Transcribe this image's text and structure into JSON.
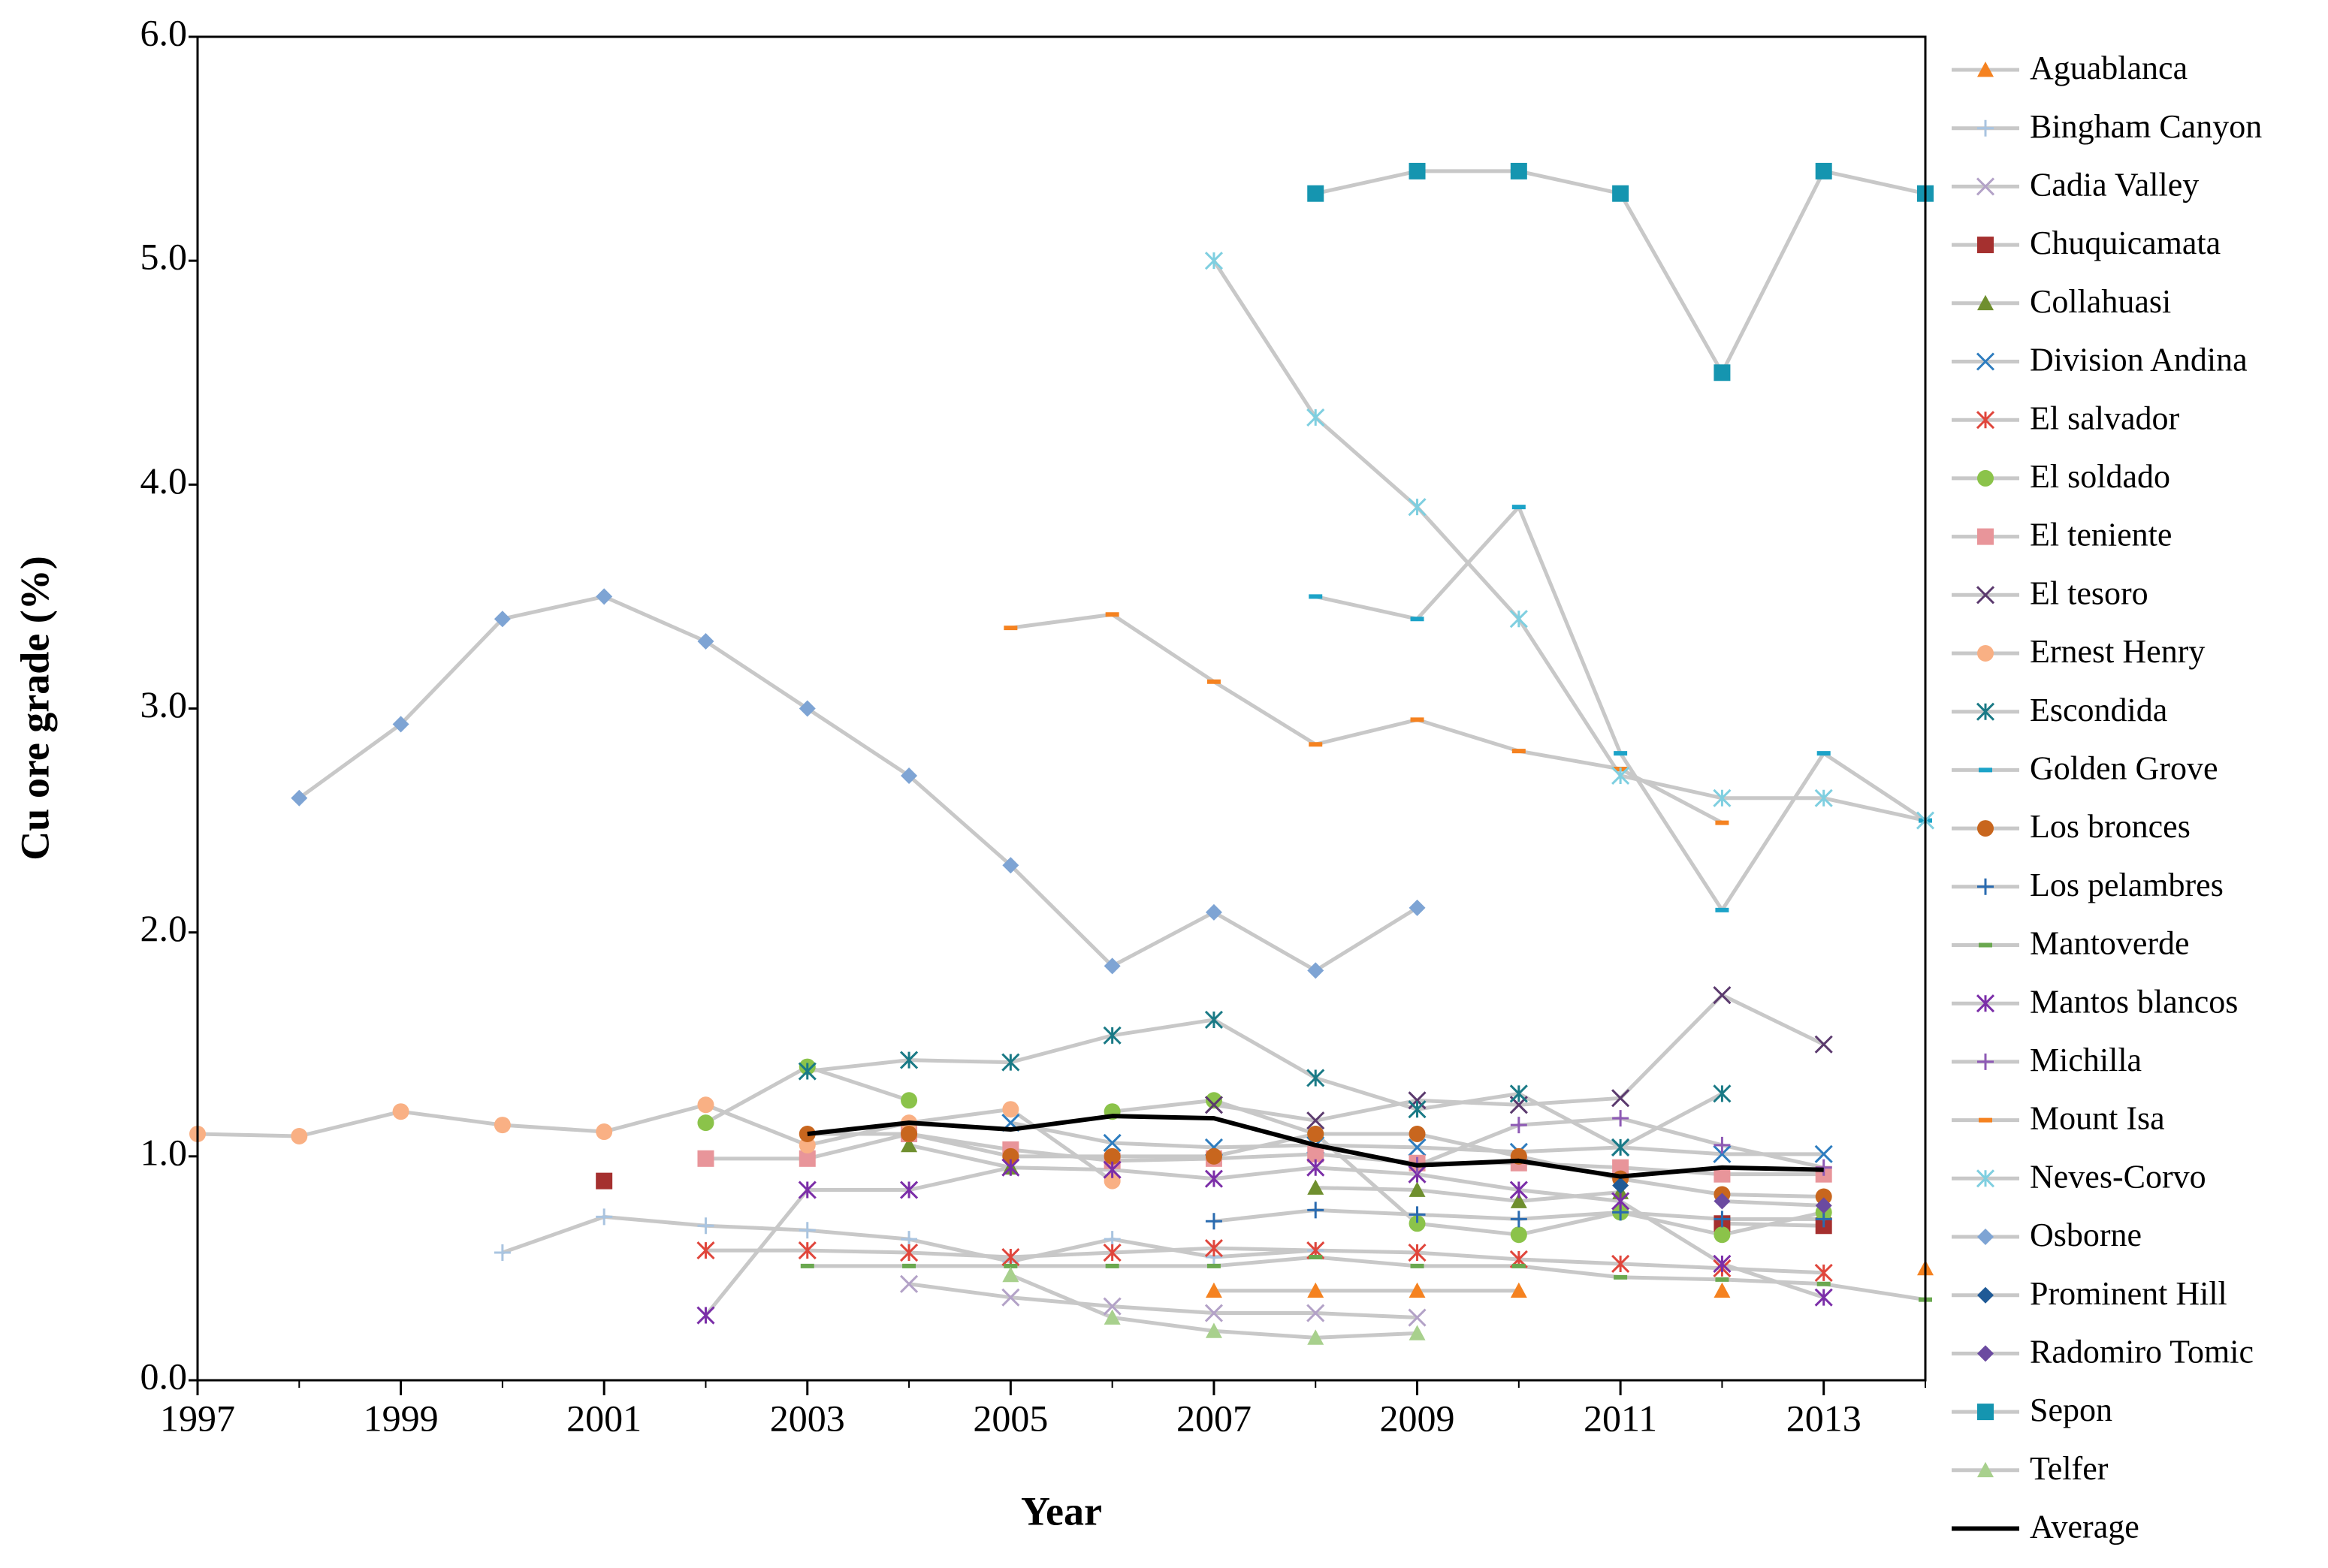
{
  "chart_data": {
    "type": "line",
    "x_label": "Year",
    "y_label": "Cu ore grade (%)",
    "x": [
      1997,
      1998,
      1999,
      2000,
      2001,
      2002,
      2003,
      2004,
      2005,
      2006,
      2007,
      2008,
      2009,
      2010,
      2011,
      2012,
      2013,
      2014
    ],
    "xlim": [
      1997,
      2014
    ],
    "xticks": [
      1997,
      1999,
      2001,
      2003,
      2005,
      2007,
      2009,
      2011,
      2013
    ],
    "ylim": [
      0,
      6
    ],
    "yticks": [
      {
        "value": 0,
        "label": "0.0"
      },
      {
        "value": 1,
        "label": "1.0"
      },
      {
        "value": 2,
        "label": "2.0"
      },
      {
        "value": 3,
        "label": "3.0"
      },
      {
        "value": 4,
        "label": "4.0"
      },
      {
        "value": 5,
        "label": "5.0"
      },
      {
        "value": 6,
        "label": "6.0"
      }
    ],
    "line_color": "#c8c8c8",
    "legend": "right",
    "series": [
      {
        "name": "Aguablanca",
        "color": "#f58220",
        "marker": "triangle",
        "values": [
          null,
          null,
          null,
          null,
          null,
          null,
          null,
          null,
          null,
          null,
          0.4,
          0.4,
          0.4,
          0.4,
          null,
          0.4,
          null,
          0.5
        ]
      },
      {
        "name": "Bingham Canyon",
        "color": "#a9c4e0",
        "marker": "plus",
        "values": [
          null,
          null,
          null,
          0.57,
          0.73,
          0.69,
          0.67,
          0.63,
          0.53,
          0.63,
          0.55,
          0.58,
          null,
          null,
          null,
          null,
          null,
          null
        ]
      },
      {
        "name": "Cadia Valley",
        "color": "#b3a2c7",
        "marker": "x",
        "values": [
          null,
          null,
          null,
          null,
          null,
          null,
          null,
          0.43,
          0.37,
          0.33,
          0.3,
          0.3,
          0.28,
          null,
          null,
          null,
          null,
          null
        ]
      },
      {
        "name": "Chuquicamata",
        "color": "#a5302f",
        "marker": "square",
        "values": [
          null,
          null,
          null,
          null,
          0.89,
          null,
          null,
          null,
          null,
          null,
          null,
          null,
          null,
          null,
          null,
          0.7,
          0.69,
          null
        ]
      },
      {
        "name": "Collahuasi",
        "color": "#6f8f2f",
        "marker": "triangle",
        "values": [
          null,
          null,
          null,
          null,
          null,
          null,
          null,
          1.05,
          0.95,
          null,
          null,
          0.86,
          0.85,
          0.8,
          0.84,
          null,
          0.75,
          null
        ]
      },
      {
        "name": "Division Andina",
        "color": "#2e7dbf",
        "marker": "x",
        "values": [
          null,
          null,
          null,
          null,
          null,
          null,
          null,
          null,
          1.15,
          1.06,
          1.04,
          1.05,
          1.04,
          1.02,
          1.04,
          1.01,
          1.01,
          null
        ]
      },
      {
        "name": "El salvador",
        "color": "#e0463c",
        "marker": "asterisk",
        "values": [
          null,
          null,
          null,
          null,
          null,
          0.58,
          0.58,
          0.57,
          0.55,
          0.57,
          0.59,
          0.58,
          0.57,
          0.54,
          0.52,
          0.5,
          0.48,
          null
        ]
      },
      {
        "name": "El soldado",
        "color": "#8bc34a",
        "marker": "circle",
        "values": [
          null,
          null,
          null,
          null,
          null,
          1.15,
          1.4,
          1.25,
          null,
          1.2,
          1.25,
          1.1,
          0.7,
          0.65,
          0.75,
          0.65,
          0.75,
          null
        ]
      },
      {
        "name": "El teniente",
        "color": "#e8959a",
        "marker": "square",
        "values": [
          null,
          null,
          null,
          null,
          null,
          0.99,
          0.99,
          1.1,
          1.03,
          0.98,
          0.99,
          1.01,
          0.97,
          0.97,
          0.95,
          0.92,
          0.92,
          null
        ]
      },
      {
        "name": "El tesoro",
        "color": "#5b3a6e",
        "marker": "x",
        "values": [
          null,
          null,
          null,
          null,
          null,
          null,
          null,
          null,
          null,
          null,
          1.23,
          1.16,
          1.25,
          1.23,
          1.26,
          1.72,
          1.5,
          null
        ]
      },
      {
        "name": "Ernest Henry",
        "color": "#f9b084",
        "marker": "circle",
        "values": [
          1.1,
          1.09,
          1.2,
          1.14,
          1.11,
          1.23,
          1.05,
          1.15,
          1.21,
          0.89,
          null,
          null,
          null,
          null,
          null,
          null,
          null,
          null
        ]
      },
      {
        "name": "Escondida",
        "color": "#1a7a86",
        "marker": "asterisk",
        "values": [
          null,
          null,
          null,
          null,
          null,
          null,
          1.38,
          1.43,
          1.42,
          1.54,
          1.61,
          1.35,
          1.21,
          1.28,
          1.04,
          1.28,
          null,
          null
        ]
      },
      {
        "name": "Golden Grove",
        "color": "#1ca3c8",
        "marker": "dash",
        "values": [
          null,
          null,
          null,
          null,
          null,
          null,
          null,
          null,
          null,
          null,
          null,
          3.5,
          3.4,
          3.9,
          2.8,
          2.1,
          2.8,
          2.5
        ]
      },
      {
        "name": "Los bronces",
        "color": "#c8661e",
        "marker": "circle",
        "values": [
          null,
          null,
          null,
          null,
          null,
          null,
          1.1,
          1.1,
          1.0,
          1.0,
          1.0,
          1.1,
          1.1,
          1.0,
          0.9,
          0.83,
          0.82,
          null
        ]
      },
      {
        "name": "Los pelambres",
        "color": "#2a6bb0",
        "marker": "plus",
        "values": [
          null,
          null,
          null,
          null,
          null,
          null,
          null,
          null,
          null,
          null,
          0.71,
          0.76,
          0.74,
          0.72,
          0.75,
          0.72,
          0.72,
          null
        ]
      },
      {
        "name": "Mantoverde",
        "color": "#6aa84f",
        "marker": "dash",
        "values": [
          null,
          null,
          null,
          null,
          null,
          null,
          0.51,
          0.51,
          0.51,
          0.51,
          0.51,
          0.55,
          0.51,
          0.51,
          0.46,
          0.45,
          0.43,
          0.36
        ]
      },
      {
        "name": "Mantos blancos",
        "color": "#7b2ea8",
        "marker": "asterisk",
        "values": [
          null,
          null,
          null,
          null,
          null,
          0.29,
          0.85,
          0.85,
          0.95,
          0.94,
          0.9,
          0.95,
          0.92,
          0.85,
          0.8,
          0.52,
          0.37,
          null
        ]
      },
      {
        "name": "Michilla",
        "color": "#8e5ab5",
        "marker": "plus",
        "values": [
          null,
          null,
          null,
          null,
          null,
          null,
          null,
          null,
          null,
          null,
          null,
          null,
          0.96,
          1.14,
          1.17,
          1.05,
          0.95,
          null
        ]
      },
      {
        "name": "Mount Isa",
        "color": "#f58220",
        "marker": "dash",
        "values": [
          null,
          null,
          null,
          null,
          null,
          null,
          null,
          null,
          3.36,
          3.42,
          3.12,
          2.84,
          2.95,
          2.81,
          2.73,
          2.49,
          null,
          null
        ]
      },
      {
        "name": "Neves-Corvo",
        "color": "#7fcfe0",
        "marker": "asterisk",
        "values": [
          null,
          null,
          null,
          null,
          null,
          null,
          null,
          null,
          null,
          null,
          5.0,
          4.3,
          3.9,
          3.4,
          2.7,
          2.6,
          2.6,
          2.5
        ]
      },
      {
        "name": "Osborne",
        "color": "#7ea4d4",
        "marker": "diamond",
        "values": [
          null,
          2.6,
          2.93,
          3.4,
          3.5,
          3.3,
          3.0,
          2.7,
          2.3,
          1.85,
          2.09,
          1.83,
          2.11,
          null,
          null,
          null,
          null,
          null
        ]
      },
      {
        "name": "Prominent Hill",
        "color": "#1f5a96",
        "marker": "diamond",
        "values": [
          null,
          null,
          null,
          null,
          null,
          null,
          null,
          null,
          null,
          null,
          null,
          null,
          null,
          null,
          0.87,
          null,
          null,
          null
        ]
      },
      {
        "name": "Radomiro Tomic",
        "color": "#6b4aa0",
        "marker": "diamond",
        "values": [
          null,
          null,
          null,
          null,
          null,
          null,
          null,
          null,
          null,
          null,
          null,
          null,
          null,
          null,
          null,
          0.8,
          0.78,
          null
        ]
      },
      {
        "name": "Sepon",
        "color": "#1595b0",
        "marker": "square",
        "values": [
          null,
          null,
          null,
          null,
          null,
          null,
          null,
          null,
          null,
          null,
          null,
          5.3,
          5.4,
          5.4,
          5.3,
          4.5,
          5.4,
          5.3
        ]
      },
      {
        "name": "Telfer",
        "color": "#a8d08d",
        "marker": "triangle",
        "values": [
          null,
          null,
          null,
          null,
          null,
          null,
          null,
          null,
          0.47,
          0.28,
          0.22,
          0.19,
          0.21,
          null,
          null,
          null,
          null,
          null
        ]
      },
      {
        "name": "Average",
        "color": "#000000",
        "marker": "none",
        "values": [
          null,
          null,
          null,
          null,
          null,
          null,
          1.1,
          1.15,
          1.12,
          1.18,
          1.17,
          1.05,
          0.96,
          0.98,
          0.91,
          0.95,
          0.94,
          null
        ]
      }
    ]
  }
}
